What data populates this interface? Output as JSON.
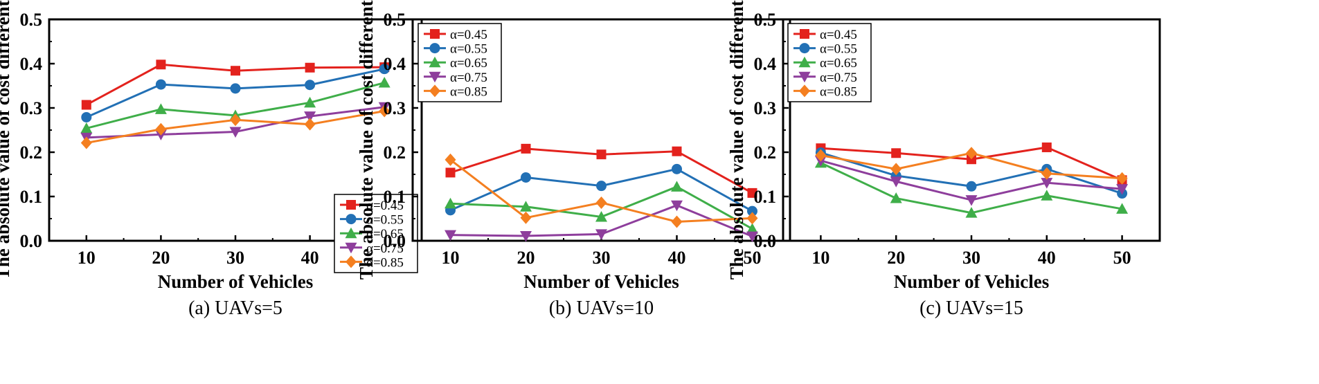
{
  "figure": {
    "xlabel": "Number of Vehicles",
    "ylabel": "The absolute value of cost differential"
  },
  "colors": {
    "α=0.45": "#e3221d",
    "α=0.55": "#2270b5",
    "α=0.65": "#3fae49",
    "α=0.75": "#8e3e9c",
    "α=0.85": "#f47f20"
  },
  "markers": {
    "α=0.45": "square",
    "α=0.55": "circle",
    "α=0.65": "triangle-up",
    "α=0.75": "triangle-down",
    "α=0.85": "diamond"
  },
  "chart_data": [
    {
      "type": "line",
      "caption": "(a) UAVs=5",
      "xlabel": "Number of Vehicles",
      "ylabel": "The absolute value of cost differential",
      "x": [
        10,
        20,
        30,
        40,
        50
      ],
      "xticks": [
        "10",
        "20",
        "30",
        "40",
        "50"
      ],
      "ylim": [
        0,
        0.5
      ],
      "yticks": [
        "0.0",
        "0.1",
        "0.2",
        "0.3",
        "0.4",
        "0.5"
      ],
      "legend_position": "bottom-right",
      "series": [
        {
          "name": "α=0.45",
          "values": [
            0.307,
            0.398,
            0.384,
            0.391,
            0.392
          ]
        },
        {
          "name": "α=0.55",
          "values": [
            0.279,
            0.353,
            0.344,
            0.352,
            0.388
          ]
        },
        {
          "name": "α=0.65",
          "values": [
            0.254,
            0.297,
            0.283,
            0.312,
            0.357
          ]
        },
        {
          "name": "α=0.75",
          "values": [
            0.233,
            0.24,
            0.246,
            0.281,
            0.302
          ]
        },
        {
          "name": "α=0.85",
          "values": [
            0.221,
            0.252,
            0.273,
            0.263,
            0.293
          ]
        }
      ]
    },
    {
      "type": "line",
      "caption": "(b) UAVs=10",
      "xlabel": "Number of Vehicles",
      "ylabel": "The absolute value of cost differential",
      "x": [
        10,
        20,
        30,
        40,
        50
      ],
      "xticks": [
        "10",
        "20",
        "30",
        "40",
        "50"
      ],
      "ylim": [
        0,
        0.5
      ],
      "yticks": [
        "0.0",
        "0.1",
        "0.2",
        "0.3",
        "0.4",
        "0.5"
      ],
      "legend_position": "top-left",
      "series": [
        {
          "name": "α=0.45",
          "values": [
            0.154,
            0.208,
            0.195,
            0.202,
            0.108
          ]
        },
        {
          "name": "α=0.55",
          "values": [
            0.069,
            0.143,
            0.124,
            0.162,
            0.067
          ]
        },
        {
          "name": "α=0.65",
          "values": [
            0.084,
            0.077,
            0.054,
            0.122,
            0.027
          ]
        },
        {
          "name": "α=0.75",
          "values": [
            0.013,
            0.011,
            0.015,
            0.08,
            0.01
          ]
        },
        {
          "name": "α=0.85",
          "values": [
            0.183,
            0.052,
            0.086,
            0.043,
            0.051
          ]
        }
      ]
    },
    {
      "type": "line",
      "caption": "(c) UAVs=15",
      "xlabel": "Number of Vehicles",
      "ylabel": "The absolute value of cost differential",
      "x": [
        10,
        20,
        30,
        40,
        50
      ],
      "xticks": [
        "10",
        "20",
        "30",
        "40",
        "50"
      ],
      "ylim": [
        0,
        0.5
      ],
      "yticks": [
        "0.0",
        "0.1",
        "0.2",
        "0.3",
        "0.4",
        "0.5"
      ],
      "legend_position": "top-left",
      "series": [
        {
          "name": "α=0.45",
          "values": [
            0.209,
            0.198,
            0.184,
            0.211,
            0.137
          ]
        },
        {
          "name": "α=0.55",
          "values": [
            0.199,
            0.147,
            0.123,
            0.162,
            0.107
          ]
        },
        {
          "name": "α=0.65",
          "values": [
            0.176,
            0.096,
            0.063,
            0.102,
            0.072
          ]
        },
        {
          "name": "α=0.75",
          "values": [
            0.181,
            0.134,
            0.092,
            0.131,
            0.117
          ]
        },
        {
          "name": "α=0.85",
          "values": [
            0.193,
            0.162,
            0.198,
            0.152,
            0.141
          ]
        }
      ]
    }
  ]
}
